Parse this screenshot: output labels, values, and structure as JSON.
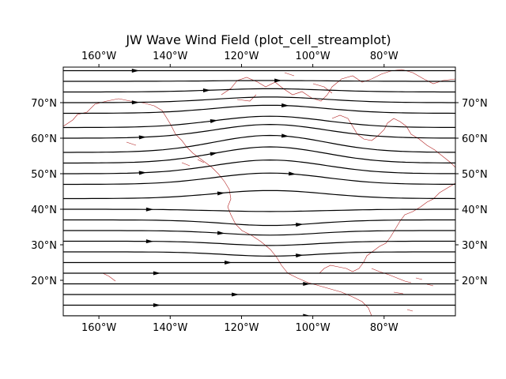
{
  "title": "JW Wave Wind Field (plot_cell_streamplot)",
  "map": {
    "lon_range": [
      -170,
      -60
    ],
    "lat_range": [
      10,
      80
    ],
    "lon_ticks": [
      {
        "value": -160,
        "label": "160°W"
      },
      {
        "value": -140,
        "label": "140°W"
      },
      {
        "value": -120,
        "label": "120°W"
      },
      {
        "value": -100,
        "label": "100°W"
      },
      {
        "value": -80,
        "label": "80°W"
      }
    ],
    "lat_ticks": [
      {
        "value": 20,
        "label": "20°N"
      },
      {
        "value": 30,
        "label": "30°N"
      },
      {
        "value": 40,
        "label": "40°N"
      },
      {
        "value": 50,
        "label": "50°N"
      },
      {
        "value": 60,
        "label": "60°N"
      },
      {
        "value": 70,
        "label": "70°N"
      }
    ],
    "coastline_color": "#b22222",
    "streamline_color": "#000000",
    "streamline_levels": [
      79,
      76,
      73,
      70,
      67,
      63,
      60,
      56,
      53,
      50,
      47,
      43,
      40,
      37,
      34,
      31,
      28,
      25,
      22,
      19,
      16,
      13,
      10
    ],
    "wave_center_lon": -112,
    "wave_amplitude_deg": 5
  }
}
